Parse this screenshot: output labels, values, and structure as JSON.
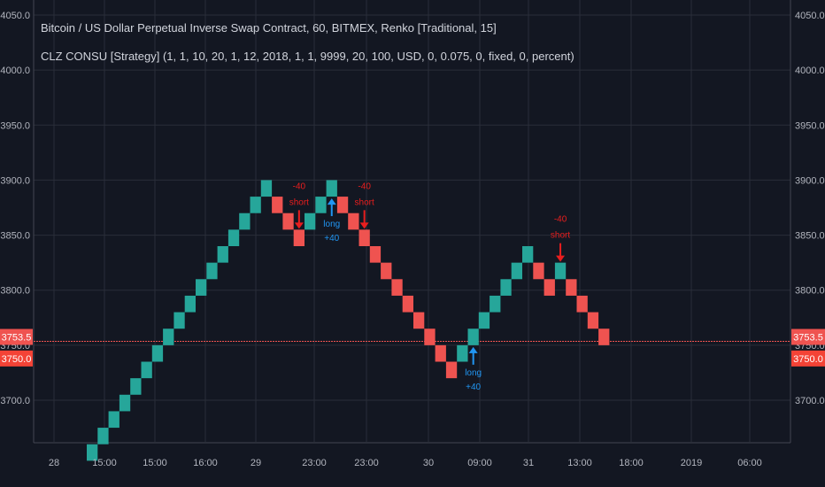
{
  "header": {
    "title": "Bitcoin / US Dollar Perpetual Inverse Swap Contract, 60, BITMEX, Renko [Traditional, 15]",
    "study": "CLZ CONSU [Strategy] (1, 1, 10, 20, 1, 12, 2018, 1, 1, 9999, 20, 100, USD, 0, 0.075, 0, fixed, 0, percent)"
  },
  "colors": {
    "background": "#131722",
    "grid": "#2a2e39",
    "up": "#26a69a",
    "down": "#ef5350",
    "long_signal": "#2196f3",
    "short_signal": "#e91e1e",
    "price_line": "#ef5350"
  },
  "chart_data": {
    "type": "renko",
    "brick_size": 15,
    "ylim": [
      3645,
      4060
    ],
    "y_ticks": [
      "4050.0",
      "4000.0",
      "3950.0",
      "3900.0",
      "3850.0",
      "3800.0",
      "3750.0",
      "3700.0"
    ],
    "x_ticks": [
      "28",
      "15:00",
      "15:00",
      "16:00",
      "29",
      "23:00",
      "23:00",
      "30",
      "09:00",
      "31",
      "13:00",
      "18:00",
      "2019",
      "06:00"
    ],
    "bricks": [
      {
        "low": 3645,
        "high": 3660,
        "dir": "up"
      },
      {
        "low": 3660,
        "high": 3675,
        "dir": "up"
      },
      {
        "low": 3675,
        "high": 3690,
        "dir": "up"
      },
      {
        "low": 3690,
        "high": 3705,
        "dir": "up"
      },
      {
        "low": 3705,
        "high": 3720,
        "dir": "up"
      },
      {
        "low": 3720,
        "high": 3735,
        "dir": "up"
      },
      {
        "low": 3735,
        "high": 3750,
        "dir": "up"
      },
      {
        "low": 3750,
        "high": 3765,
        "dir": "up"
      },
      {
        "low": 3765,
        "high": 3780,
        "dir": "up"
      },
      {
        "low": 3780,
        "high": 3795,
        "dir": "up"
      },
      {
        "low": 3795,
        "high": 3810,
        "dir": "up"
      },
      {
        "low": 3810,
        "high": 3825,
        "dir": "up"
      },
      {
        "low": 3825,
        "high": 3840,
        "dir": "up"
      },
      {
        "low": 3840,
        "high": 3855,
        "dir": "up"
      },
      {
        "low": 3855,
        "high": 3870,
        "dir": "up"
      },
      {
        "low": 3870,
        "high": 3885,
        "dir": "up"
      },
      {
        "low": 3885,
        "high": 3900,
        "dir": "up"
      },
      {
        "low": 3870,
        "high": 3885,
        "dir": "down"
      },
      {
        "low": 3855,
        "high": 3870,
        "dir": "down"
      },
      {
        "low": 3840,
        "high": 3855,
        "dir": "down"
      },
      {
        "low": 3855,
        "high": 3870,
        "dir": "up"
      },
      {
        "low": 3870,
        "high": 3885,
        "dir": "up"
      },
      {
        "low": 3885,
        "high": 3900,
        "dir": "up"
      },
      {
        "low": 3870,
        "high": 3885,
        "dir": "down"
      },
      {
        "low": 3855,
        "high": 3870,
        "dir": "down"
      },
      {
        "low": 3840,
        "high": 3855,
        "dir": "down"
      },
      {
        "low": 3825,
        "high": 3840,
        "dir": "down"
      },
      {
        "low": 3810,
        "high": 3825,
        "dir": "down"
      },
      {
        "low": 3795,
        "high": 3810,
        "dir": "down"
      },
      {
        "low": 3780,
        "high": 3795,
        "dir": "down"
      },
      {
        "low": 3765,
        "high": 3780,
        "dir": "down"
      },
      {
        "low": 3750,
        "high": 3765,
        "dir": "down"
      },
      {
        "low": 3735,
        "high": 3750,
        "dir": "down"
      },
      {
        "low": 3720,
        "high": 3735,
        "dir": "down"
      },
      {
        "low": 3735,
        "high": 3750,
        "dir": "up"
      },
      {
        "low": 3750,
        "high": 3765,
        "dir": "up"
      },
      {
        "low": 3765,
        "high": 3780,
        "dir": "up"
      },
      {
        "low": 3780,
        "high": 3795,
        "dir": "up"
      },
      {
        "low": 3795,
        "high": 3810,
        "dir": "up"
      },
      {
        "low": 3810,
        "high": 3825,
        "dir": "up"
      },
      {
        "low": 3825,
        "high": 3840,
        "dir": "up"
      },
      {
        "low": 3810,
        "high": 3825,
        "dir": "down"
      },
      {
        "low": 3795,
        "high": 3810,
        "dir": "down"
      },
      {
        "low": 3810,
        "high": 3825,
        "dir": "up"
      },
      {
        "low": 3795,
        "high": 3810,
        "dir": "down"
      },
      {
        "low": 3780,
        "high": 3795,
        "dir": "down"
      },
      {
        "low": 3765,
        "high": 3780,
        "dir": "down"
      },
      {
        "low": 3750,
        "high": 3765,
        "dir": "down"
      }
    ],
    "signals": [
      {
        "brick": 19,
        "type": "short",
        "label": "short",
        "value": "-40"
      },
      {
        "brick": 22,
        "type": "long",
        "label": "long",
        "value": "+40"
      },
      {
        "brick": 25,
        "type": "short",
        "label": "short",
        "value": "-40"
      },
      {
        "brick": 35,
        "type": "long",
        "label": "long",
        "value": "+40"
      },
      {
        "brick": 43,
        "type": "short",
        "label": "short",
        "value": "-40"
      }
    ],
    "last_price": "3753.5",
    "last_price_value": 3753.5,
    "level_badge": "3750.0",
    "level_value": 3750
  }
}
